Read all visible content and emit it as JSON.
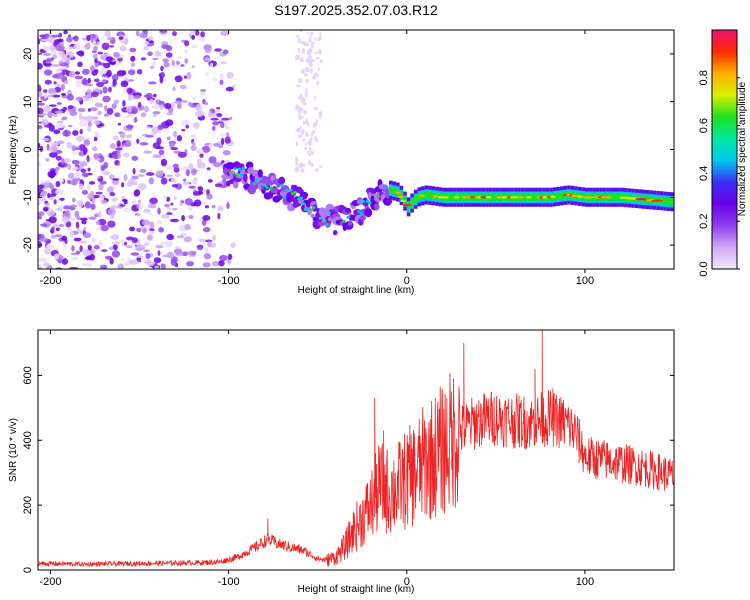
{
  "title": "S197.2025.352.07.03.R12",
  "chart_data": [
    {
      "type": "heatmap",
      "title": "S197.2025.352.07.03.R12",
      "xlabel": "Height of straight line (km)",
      "ylabel": "Frequency (Hz)",
      "xlim": [
        -207,
        150
      ],
      "ylim": [
        -25,
        25
      ],
      "xticks": [
        -200,
        -100,
        0,
        100
      ],
      "yticks": [
        -20,
        -10,
        0,
        10,
        20
      ],
      "colorbar": {
        "label": "Normalized spectral amplitude",
        "range": [
          0,
          1
        ],
        "ticks": [
          0.0,
          0.2,
          0.4,
          0.6,
          0.8
        ],
        "tick_labels": [
          "0.0",
          "0.2",
          "0.4",
          "0.6",
          "0.8"
        ],
        "colors": [
          "#f2e8fb",
          "#cfa8f5",
          "#8e3ef0",
          "#6a00e8",
          "#3a30f5",
          "#00c8f0",
          "#00e8a0",
          "#20e020",
          "#d8f000",
          "#ffb000",
          "#ff2a00",
          "#f01070"
        ]
      },
      "ridge": {
        "x": [
          -100,
          -90,
          -80,
          -70,
          -60,
          -50,
          -40,
          -30,
          -20,
          -15,
          -10,
          -5,
          0,
          5,
          10,
          20,
          40,
          60,
          80,
          90,
          100,
          120,
          150
        ],
        "freq": [
          -5,
          -5.5,
          -7,
          -8.5,
          -11,
          -14,
          -15,
          -14,
          -11,
          -9,
          -8.5,
          -9,
          -12,
          -10,
          -9.5,
          -10,
          -10,
          -10,
          -10,
          -9.5,
          -10,
          -10,
          -11
        ]
      }
    },
    {
      "type": "line",
      "xlabel": "Height of straight line (km)",
      "ylabel": "SNR (10 * v/v)",
      "xlim": [
        -207,
        150
      ],
      "ylim": [
        0,
        740
      ],
      "xticks": [
        -200,
        -100,
        0,
        100
      ],
      "yticks": [
        0,
        200,
        400,
        600
      ],
      "series": [
        {
          "name": "SNR",
          "color": "#ee2222",
          "x": [
            -207,
            -180,
            -150,
            -120,
            -105,
            -95,
            -85,
            -78,
            -72,
            -65,
            -58,
            -50,
            -45,
            -40,
            -35,
            -30,
            -25,
            -20,
            -15,
            -10,
            -5,
            0,
            5,
            10,
            20,
            30,
            40,
            50,
            60,
            70,
            80,
            90,
            95,
            100,
            110,
            120,
            130,
            150
          ],
          "values": [
            20,
            18,
            20,
            22,
            25,
            40,
            70,
            95,
            80,
            70,
            60,
            35,
            30,
            40,
            70,
            120,
            160,
            200,
            260,
            240,
            255,
            280,
            300,
            330,
            370,
            430,
            460,
            470,
            460,
            455,
            470,
            450,
            420,
            350,
            340,
            330,
            320,
            290
          ],
          "spikes": [
            {
              "x": -78,
              "value": 160
            },
            {
              "x": -18,
              "value": 530
            },
            {
              "x": -13,
              "value": 430
            },
            {
              "x": 32,
              "value": 700
            },
            {
              "x": 45,
              "value": 520
            },
            {
              "x": 72,
              "value": 620
            },
            {
              "x": 76,
              "value": 740
            },
            {
              "x": 82,
              "value": 560
            },
            {
              "x": 96,
              "value": 470
            }
          ]
        }
      ]
    }
  ]
}
